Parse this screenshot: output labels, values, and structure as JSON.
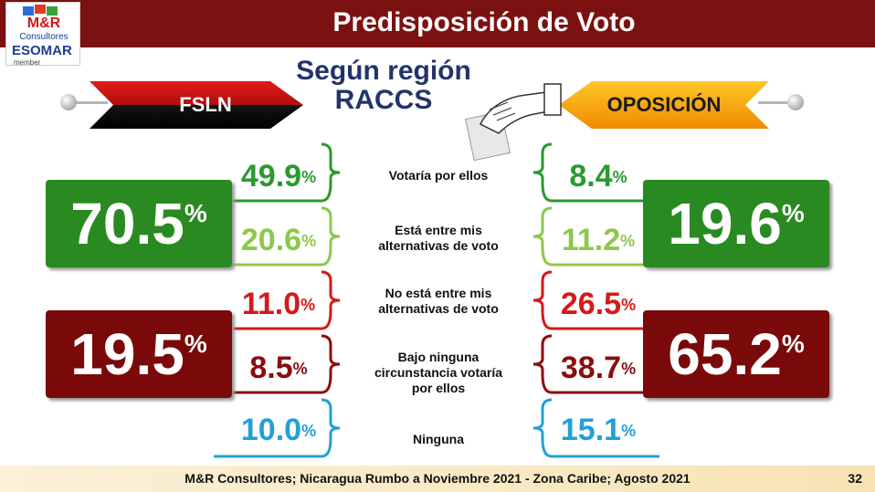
{
  "header": {
    "title": "Predisposición de Voto"
  },
  "logo": {
    "name": "M&R",
    "sub": "Consultores",
    "esomar": "ESOMAR",
    "member": "member"
  },
  "subtitle": {
    "line1": "Según región",
    "line2": "RACCS"
  },
  "left_label": "FSLN",
  "right_label": "OPOSICIÓN",
  "percent_sign": "%",
  "chart_data": {
    "type": "table",
    "series": [
      {
        "name": "FSLN",
        "values": [
          49.9,
          20.6,
          11.0,
          8.5,
          10.0
        ]
      },
      {
        "name": "OPOSICIÓN",
        "values": [
          8.4,
          11.2,
          26.5,
          38.7,
          15.1
        ]
      }
    ],
    "categories": [
      "Votaría por ellos",
      "Está entre mis alternativas de voto",
      "No está entre mis alternativas de voto",
      "Bajo ninguna circunstancia votaría por ellos",
      "Ninguna"
    ],
    "totals": {
      "fsln_positive": "70.5",
      "fsln_negative": "19.5",
      "oposicion_positive": "19.6",
      "oposicion_negative": "65.2"
    },
    "display": {
      "fsln": [
        "49.9",
        "20.6",
        "11.0",
        "8.5",
        "10.0"
      ],
      "oposicion": [
        "8.4",
        "11.2",
        "26.5",
        "38.7",
        "15.1"
      ]
    },
    "row_colors": [
      "#2a9a2e",
      "#8cc84b",
      "#d41a1a",
      "#8a0e0e",
      "#22a0d8"
    ],
    "labels": {
      "r1": [
        "Votaría por ellos"
      ],
      "r2": [
        "Está entre mis",
        "alternativas de voto"
      ],
      "r3": [
        "No está entre mis",
        "alternativas de voto"
      ],
      "r4": [
        "Bajo ninguna",
        "circunstancia votaría",
        "por ellos"
      ],
      "r5": [
        "Ninguna"
      ]
    }
  },
  "colors": {
    "header": "#7b1111",
    "green": "#2a8a22",
    "maroon": "#7a0a0a",
    "subtitle": "#23346b"
  },
  "footer": {
    "note": "M&R Consultores; Nicaragua Rumbo a Noviembre 2021 - Zona Caribe; Agosto 2021",
    "page": "32"
  }
}
